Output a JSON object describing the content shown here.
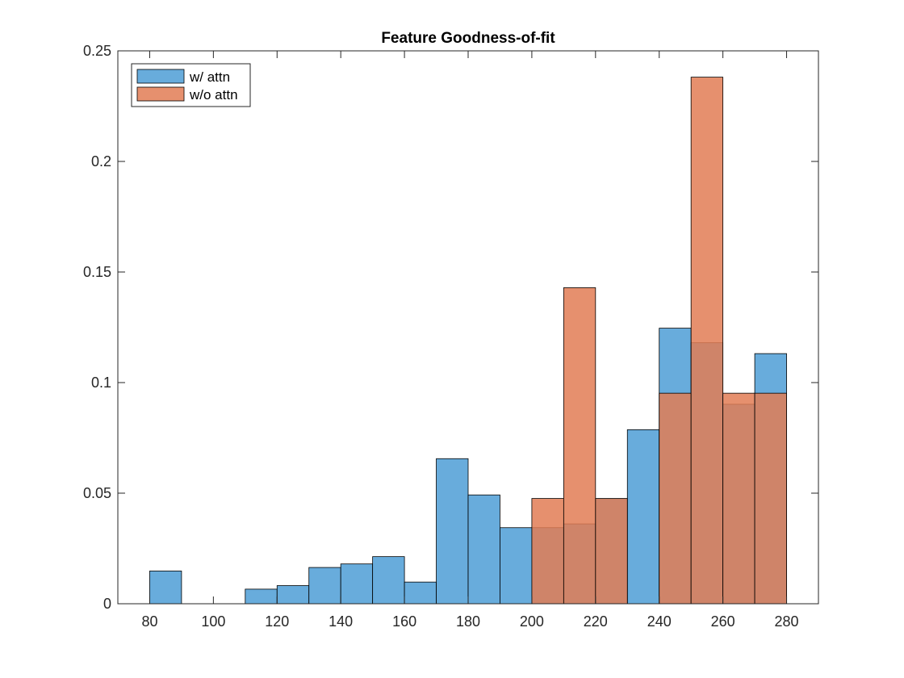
{
  "chart_data": {
    "type": "bar",
    "title": "Feature Goodness-of-fit",
    "xlabel": "",
    "ylabel": "",
    "xlim": [
      70,
      290
    ],
    "ylim": [
      0,
      0.25
    ],
    "xticks": [
      80,
      100,
      120,
      140,
      160,
      180,
      200,
      220,
      240,
      260,
      280
    ],
    "yticks": [
      0,
      0.05,
      0.1,
      0.15,
      0.2,
      0.25
    ],
    "xtick_labels": [
      "80",
      "100",
      "120",
      "140",
      "160",
      "180",
      "200",
      "220",
      "240",
      "260",
      "280"
    ],
    "ytick_labels": [
      "0",
      "0.05",
      "0.1",
      "0.15",
      "0.2",
      "0.25"
    ],
    "grid": false,
    "legend_position": "top-left",
    "bin_edges": [
      80,
      90,
      100,
      110,
      120,
      130,
      140,
      150,
      160,
      170,
      180,
      190,
      200,
      210,
      220,
      230,
      240,
      250,
      260,
      270,
      280
    ],
    "series": [
      {
        "name": "w/ attn",
        "color": "#4d9ed6",
        "values": [
          0.0148,
          0,
          0,
          0.0066,
          0.0082,
          0.0164,
          0.018,
          0.0213,
          0.0098,
          0.0656,
          0.0492,
          0.0344,
          0.0344,
          0.0361,
          0.0475,
          0.0787,
          0.1246,
          0.118,
          0.0902,
          0.1131
        ]
      },
      {
        "name": "w/o attn",
        "color": "#e27c55",
        "values": [
          0,
          0,
          0,
          0,
          0,
          0,
          0,
          0,
          0,
          0,
          0,
          0,
          0.0476,
          0.1429,
          0.0476,
          0,
          0.0952,
          0.2381,
          0.0952,
          0.0952
        ]
      }
    ]
  }
}
